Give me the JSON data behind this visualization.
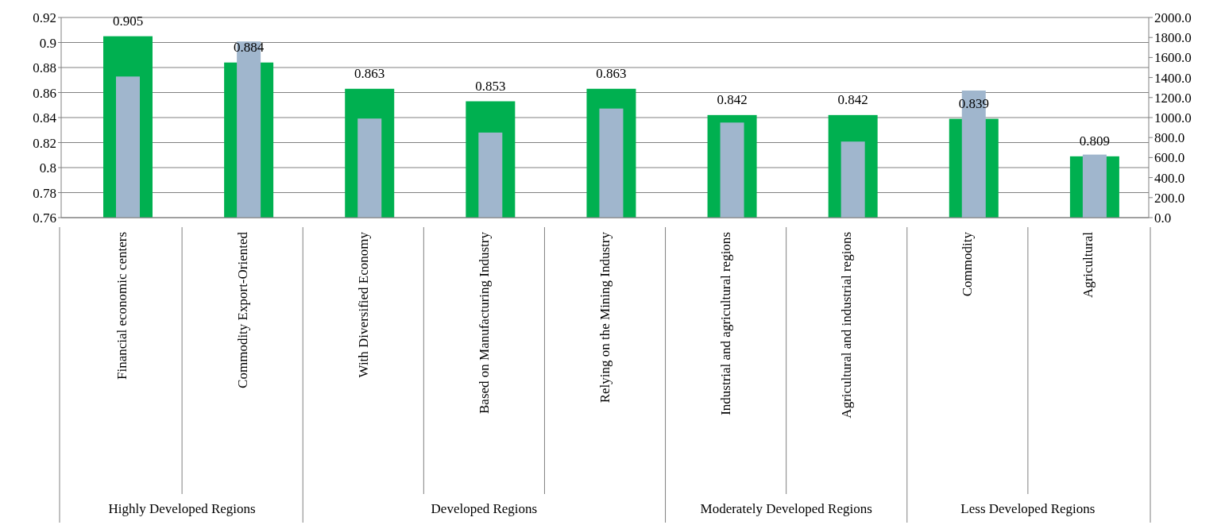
{
  "chart_data": {
    "type": "bar",
    "categories": [
      "Financial economic centers",
      "Commodity Export-Oriented",
      "With Diversified Economy",
      "Based on Manufacturing Industry",
      "Relying on the Mining Industry",
      "Industrial and agricultural regions",
      "Agricultural and industrial regions",
      "Commodity",
      "Agricultural"
    ],
    "series": [
      {
        "color": "#00b050",
        "values": [
          0.905,
          0.884,
          0.863,
          0.853,
          0.863,
          0.842,
          0.842,
          0.839,
          0.809
        ],
        "value_labels": [
          "0.905",
          "0.884",
          "0.863",
          "0.853",
          "0.863",
          "0.842",
          "0.842",
          "0.839",
          "0.809"
        ]
      },
      {
        "color": "#a0b6cd",
        "axis": "y2",
        "values": [
          1410,
          1760,
          990,
          850,
          1090,
          950,
          760,
          1270,
          630
        ]
      }
    ],
    "ylim": [
      0.76,
      0.92
    ],
    "yticks": [
      0.76,
      0.78,
      0.8,
      0.82,
      0.84,
      0.86,
      0.88,
      0.9,
      0.92
    ],
    "y2lim": [
      0,
      2000
    ],
    "y2ticks": [
      {
        "value": 0,
        "label": "0.0"
      },
      {
        "value": 200,
        "label": "200.0"
      },
      {
        "value": 400,
        "label": "400.0"
      },
      {
        "value": 600,
        "label": "600.0"
      },
      {
        "value": 800,
        "label": "800.0"
      },
      {
        "value": 1000,
        "label": "1000.0"
      },
      {
        "value": 1200,
        "label": "1200.0"
      },
      {
        "value": 1400,
        "label": "1400.0"
      },
      {
        "value": 1600,
        "label": "1600.0"
      },
      {
        "value": 1800,
        "label": "1800.0"
      },
      {
        "value": 2000,
        "label": "2000.0"
      }
    ],
    "grid": "y",
    "annotations": [
      "Highly Developed Regions",
      "Developed Regions",
      "Moderately Developed Regions",
      "Less Developed Regions"
    ]
  }
}
